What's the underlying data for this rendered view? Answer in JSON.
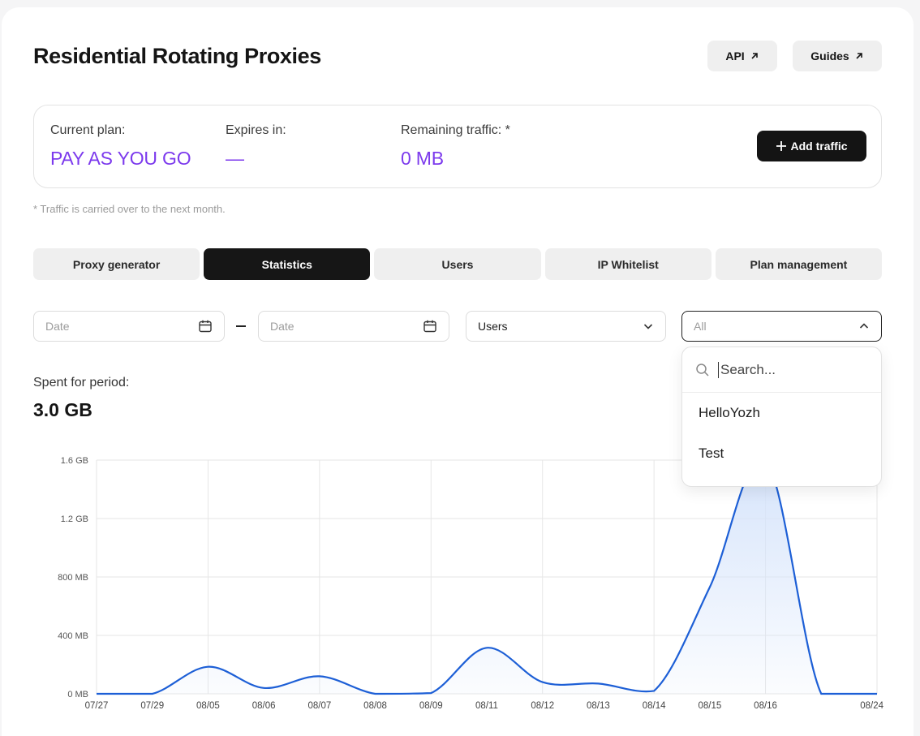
{
  "header": {
    "title": "Residential Rotating Proxies",
    "api_label": "API",
    "guides_label": "Guides"
  },
  "plan": {
    "current_label": "Current plan:",
    "current_value": "PAY AS YOU GO",
    "expires_label": "Expires in:",
    "expires_value": "—",
    "remaining_label": "Remaining traffic: *",
    "remaining_value": "0 MB",
    "add_label": "Add traffic",
    "accent_color": "#7c3aed"
  },
  "note": "* Traffic is carried over to the next month.",
  "tabs": [
    {
      "label": "Proxy generator",
      "active": false
    },
    {
      "label": "Statistics",
      "active": true
    },
    {
      "label": "Users",
      "active": false
    },
    {
      "label": "IP Whitelist",
      "active": false
    },
    {
      "label": "Plan management",
      "active": false
    }
  ],
  "filters": {
    "date_from_placeholder": "Date",
    "date_to_placeholder": "Date",
    "users_value": "Users",
    "all_value": "All"
  },
  "dropdown": {
    "search_placeholder": "Search...",
    "options": [
      "HelloYozh",
      "Test"
    ]
  },
  "spent": {
    "label": "Spent for period:",
    "value": "3.0 GB"
  },
  "chart_data": {
    "type": "area",
    "x": [
      "07/27",
      "07/29",
      "08/05",
      "08/06",
      "08/07",
      "08/08",
      "08/09",
      "08/11",
      "08/12",
      "08/13",
      "08/14",
      "08/15",
      "08/16",
      "",
      "08/24"
    ],
    "values_mb": [
      0,
      0,
      185,
      40,
      120,
      0,
      5,
      315,
      80,
      70,
      20,
      730,
      1600,
      0,
      0
    ],
    "y_ticks": [
      "0 MB",
      "400 MB",
      "800 MB",
      "1.2 GB",
      "1.6 GB"
    ],
    "ylim_mb": [
      0,
      1600
    ],
    "grid": true,
    "line_color": "#1d5fd6",
    "fill_color": "#d6e4fb"
  }
}
